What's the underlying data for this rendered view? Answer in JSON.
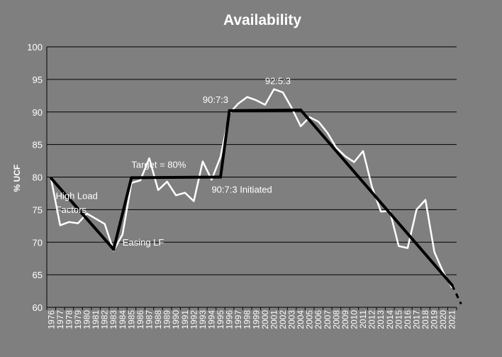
{
  "chart_data": {
    "type": "line",
    "title": "Availability",
    "xlabel": "",
    "ylabel": "% UCF",
    "ylim": [
      60,
      100
    ],
    "yticks": [
      60,
      65,
      70,
      75,
      80,
      85,
      90,
      95,
      100
    ],
    "grid": true,
    "legend": "none",
    "x": [
      "1976",
      "1977",
      "1978",
      "1979",
      "1980",
      "1981",
      "1982",
      "1983",
      "1984",
      "1985",
      "1986",
      "1987",
      "1988",
      "1989",
      "1990",
      "1991",
      "1992",
      "1993",
      "1994",
      "1995",
      "1996",
      "1997",
      "1998",
      "1999",
      "2000",
      "2001",
      "2002",
      "2003",
      "2004",
      "2005",
      "2006",
      "2007",
      "2008",
      "2009",
      "2010",
      "2011",
      "2012",
      "2013",
      "2014",
      "2015",
      "2016",
      "2017",
      "2018",
      "2019",
      "2020",
      "2021"
    ],
    "series": [
      {
        "color": "#ffffff",
        "values": [
          79.6,
          72.6,
          73.1,
          72.9,
          74.4,
          73.6,
          72.8,
          68.7,
          71.2,
          79.1,
          79.5,
          82.9,
          78.0,
          79.3,
          77.2,
          77.6,
          76.3,
          82.4,
          79.6,
          83.1,
          89.8,
          91.3,
          92.3,
          91.8,
          91.1,
          93.5,
          93.0,
          90.6,
          87.8,
          89.2,
          88.5,
          86.8,
          84.5,
          83.2,
          82.3,
          84.0,
          78.5,
          74.7,
          74.8,
          69.4,
          69.1,
          75.0,
          76.5,
          68.5,
          65.4,
          63.0
        ]
      },
      {
        "color": "#000000",
        "segments": [
          {
            "from": [
              "1976",
              79.8
            ],
            "to": [
              "1983",
              68.9
            ]
          },
          {
            "from": [
              "1983",
              68.9
            ],
            "to": [
              "1985",
              79.9
            ]
          },
          {
            "from": [
              "1985",
              79.9
            ],
            "to": [
              "1995",
              80.0
            ]
          },
          {
            "from": [
              "1995",
              80.0
            ],
            "to": [
              "1996",
              90.2
            ]
          },
          {
            "from": [
              "1996",
              90.2
            ],
            "to": [
              "2004",
              90.3
            ]
          },
          {
            "from": [
              "2004",
              90.3
            ],
            "to": [
              "2021",
              63.4
            ]
          }
        ],
        "dashed_extension": {
          "from": [
            "2021",
            63.4
          ],
          "to": [
            "2022",
            60.5
          ]
        }
      }
    ],
    "annotations": [
      {
        "text": "High Load",
        "x": "1976.5",
        "y": 76.6
      },
      {
        "text": "Factors",
        "x": "1976.5",
        "y": 74.5
      },
      {
        "text": "Easing LF",
        "x": "1984",
        "y": 69.5
      },
      {
        "text": "Target = 80%",
        "x": "1985",
        "y": 81.4
      },
      {
        "text": "90:7:3 Initiated",
        "x": "1994",
        "y": 77.6
      },
      {
        "text": "90:7:3",
        "x": "1993",
        "y": 91.4
      },
      {
        "text": "92:5:3",
        "x": "2000",
        "y": 94.3
      }
    ]
  }
}
